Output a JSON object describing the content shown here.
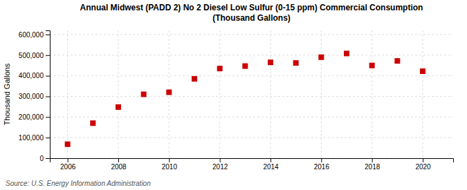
{
  "chart_data": {
    "type": "scatter",
    "title": "Annual Midwest (PADD 2) No 2 Diesel Low Sulfur (0-15 ppm) Commercial Consumption\n(Thousand Gallons)",
    "y_label": "Thousand Gallons",
    "source": "Source: U.S. Energy Information Administration",
    "x": [
      2006,
      2007,
      2008,
      2009,
      2010,
      2011,
      2012,
      2013,
      2014,
      2015,
      2016,
      2017,
      2018,
      2019,
      2020
    ],
    "values": [
      68000,
      170000,
      248000,
      310000,
      320000,
      385000,
      435000,
      447000,
      465000,
      462000,
      490000,
      508000,
      450000,
      472000,
      422000
    ],
    "color": "#cc0000",
    "marker": "square",
    "xlim": [
      2005.3,
      2021.2
    ],
    "xticks": [
      2006,
      2008,
      2010,
      2012,
      2014,
      2016,
      2018,
      2020
    ],
    "ylim": [
      0,
      620000
    ],
    "yticks": [
      0,
      {
        "value": 100000,
        "label": "100,000"
      },
      {
        "value": 200000,
        "label": "200,000"
      },
      {
        "value": 300000,
        "label": "300,000"
      },
      {
        "value": 400000,
        "label": "400,000"
      },
      {
        "value": 500000,
        "label": "500,000"
      },
      {
        "value": 600000,
        "label": "600,000"
      }
    ],
    "grid": true
  }
}
